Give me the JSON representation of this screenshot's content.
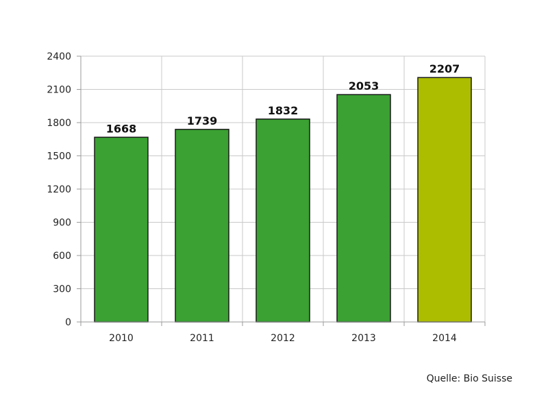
{
  "chart_data": {
    "type": "bar",
    "categories": [
      "2010",
      "2011",
      "2012",
      "2013",
      "2014"
    ],
    "values": [
      1668,
      1739,
      1832,
      2053,
      2207
    ],
    "value_labels": [
      "1668",
      "1739",
      "1832",
      "2053",
      "2207"
    ],
    "yticks": [
      "0",
      "300",
      "600",
      "900",
      "1200",
      "1500",
      "1800",
      "2100",
      "2400"
    ],
    "ylim": [
      0,
      2400
    ],
    "grid": true,
    "colors": {
      "bar": "#3aa132",
      "highlight_bar": "#acbd00",
      "bar_stroke": "#1a1a1a",
      "grid": "#c8c8c8",
      "axis": "#9a9a9a"
    },
    "highlight_index": 4,
    "source": "Quelle: Bio Suisse"
  }
}
